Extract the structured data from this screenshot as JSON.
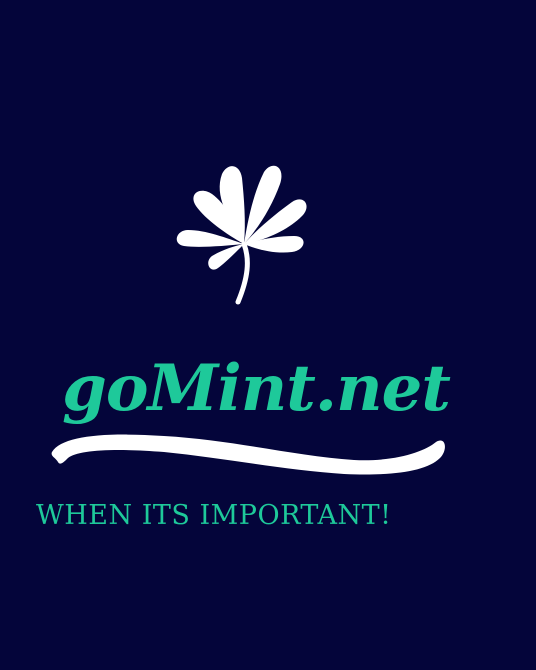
{
  "logo": {
    "icon": "clover-icon",
    "brand_name": "goMint.net",
    "tagline": "WHEN ITS IMPORTANT!"
  },
  "colors": {
    "background": "#04053a",
    "accent": "#1ec99a",
    "icon": "#ffffff"
  }
}
